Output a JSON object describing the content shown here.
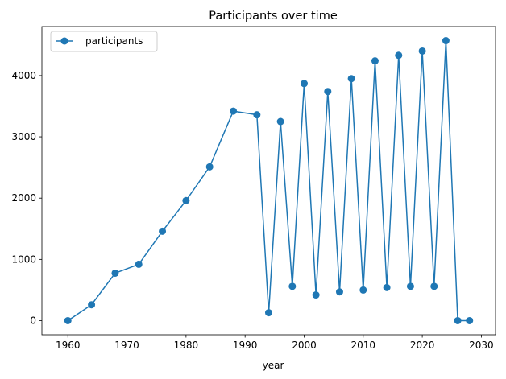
{
  "chart_data": {
    "type": "line",
    "title": "Participants over time",
    "xlabel": "year",
    "ylabel": "",
    "xlim": [
      1955.6,
      2032.4
    ],
    "ylim": [
      -230,
      4800
    ],
    "x_ticks": [
      1960,
      1970,
      1980,
      1990,
      2000,
      2010,
      2020,
      2030
    ],
    "y_ticks": [
      0,
      1000,
      2000,
      3000,
      4000
    ],
    "grid": false,
    "legend_position": "top-left",
    "color": "#1f77b4",
    "series": [
      {
        "name": "participants",
        "marker": "circle",
        "points": [
          [
            1960,
            0
          ],
          [
            1964,
            260
          ],
          [
            1968,
            775
          ],
          [
            1972,
            920
          ],
          [
            1976,
            1460
          ],
          [
            1980,
            1960
          ],
          [
            1984,
            2510
          ],
          [
            1988,
            3420
          ],
          [
            1992,
            3360
          ],
          [
            1994,
            130
          ],
          [
            1996,
            3250
          ],
          [
            1998,
            560
          ],
          [
            2000,
            3870
          ],
          [
            2002,
            420
          ],
          [
            2004,
            3740
          ],
          [
            2006,
            470
          ],
          [
            2008,
            3950
          ],
          [
            2010,
            500
          ],
          [
            2012,
            4240
          ],
          [
            2014,
            540
          ],
          [
            2016,
            4330
          ],
          [
            2018,
            560
          ],
          [
            2020,
            4400
          ],
          [
            2022,
            560
          ],
          [
            2024,
            4570
          ],
          [
            2026,
            0
          ],
          [
            2028,
            0
          ]
        ]
      }
    ]
  }
}
